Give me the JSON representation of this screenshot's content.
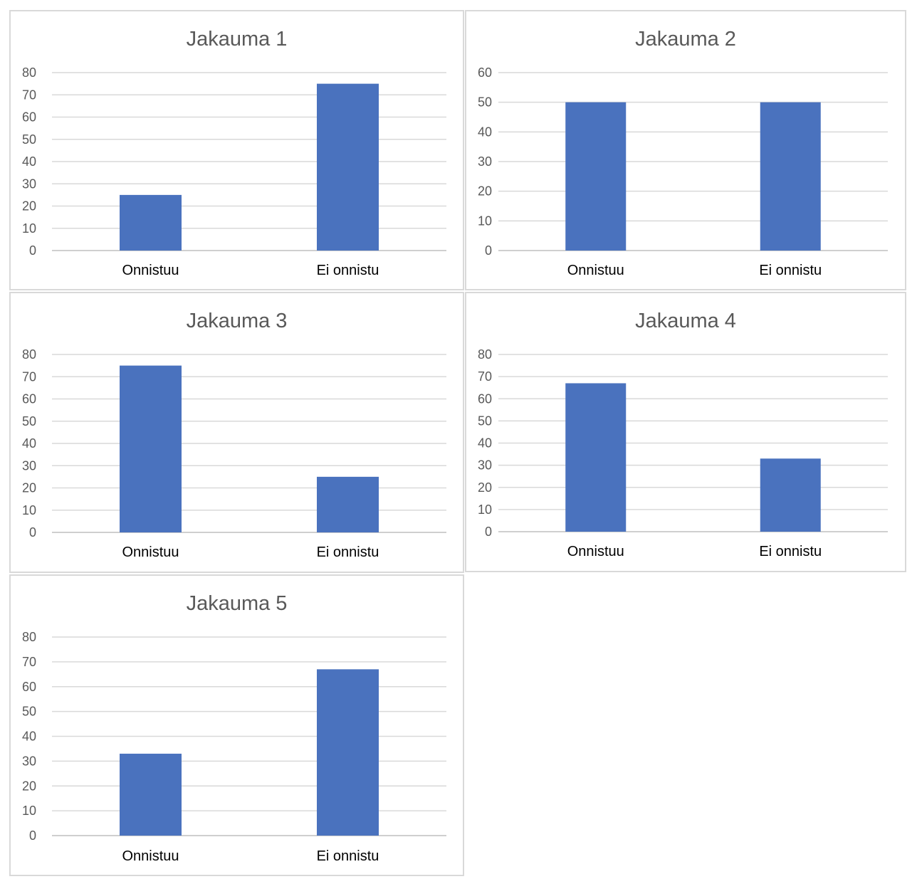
{
  "colors": {
    "bar": "#4a72be",
    "grid": "#d9d9d9",
    "text": "#595959"
  },
  "chart_data": [
    {
      "type": "bar",
      "title": "Jakauma 1",
      "categories": [
        "Onnistuu",
        "Ei onnistu"
      ],
      "values": [
        25,
        75
      ],
      "ylim": [
        0,
        80
      ],
      "yticks": [
        0,
        10,
        20,
        30,
        40,
        50,
        60,
        70,
        80
      ],
      "grid": true,
      "legend": "none"
    },
    {
      "type": "bar",
      "title": "Jakauma 2",
      "categories": [
        "Onnistuu",
        "Ei onnistu"
      ],
      "values": [
        50,
        50
      ],
      "ylim": [
        0,
        60
      ],
      "yticks": [
        0,
        10,
        20,
        30,
        40,
        50,
        60
      ],
      "grid": true,
      "legend": "none"
    },
    {
      "type": "bar",
      "title": "Jakauma 3",
      "categories": [
        "Onnistuu",
        "Ei onnistu"
      ],
      "values": [
        75,
        25
      ],
      "ylim": [
        0,
        80
      ],
      "yticks": [
        0,
        10,
        20,
        30,
        40,
        50,
        60,
        70,
        80
      ],
      "grid": true,
      "legend": "none"
    },
    {
      "type": "bar",
      "title": "Jakauma 4",
      "categories": [
        "Onnistuu",
        "Ei onnistu"
      ],
      "values": [
        67,
        33
      ],
      "ylim": [
        0,
        80
      ],
      "yticks": [
        0,
        10,
        20,
        30,
        40,
        50,
        60,
        70,
        80
      ],
      "grid": true,
      "legend": "none"
    },
    {
      "type": "bar",
      "title": "Jakauma 5",
      "categories": [
        "Onnistuu",
        "Ei onnistu"
      ],
      "values": [
        33,
        67
      ],
      "ylim": [
        0,
        80
      ],
      "yticks": [
        0,
        10,
        20,
        30,
        40,
        50,
        60,
        70,
        80
      ],
      "grid": true,
      "legend": "none"
    }
  ]
}
